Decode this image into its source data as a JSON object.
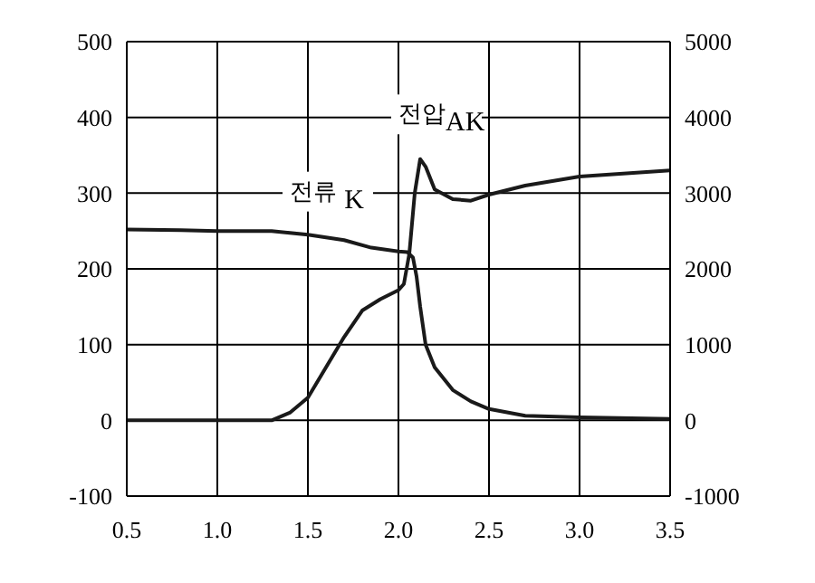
{
  "chart_data": {
    "type": "line",
    "xlim": [
      0.5,
      3.5
    ],
    "xticks": [
      {
        "value": 0.5,
        "label": "0.5"
      },
      {
        "value": 1,
        "label": "1.0"
      },
      {
        "value": 1.5,
        "label": "1.5"
      },
      {
        "value": 2,
        "label": "2.0"
      },
      {
        "value": 2.5,
        "label": "2.5"
      },
      {
        "value": 3,
        "label": "3.0"
      },
      {
        "value": 3.5,
        "label": "3.5"
      }
    ],
    "ylim": [
      -100,
      500
    ],
    "yticks": [
      -100,
      0,
      100,
      200,
      300,
      400,
      500
    ],
    "y2lim": [
      -1000,
      5000
    ],
    "y2ticks": [
      -1000,
      0,
      1000,
      2000,
      3000,
      4000,
      5000
    ],
    "grid": true,
    "marker": "none",
    "line_style": "solid",
    "series": [
      {
        "color": "#1a1a1a",
        "x": [
          0.5,
          0.8,
          1.0,
          1.3,
          1.5,
          1.7,
          1.85,
          2.0,
          2.05,
          2.08,
          2.1,
          2.12,
          2.15,
          2.2,
          2.3,
          2.4,
          2.5,
          2.7,
          3.0,
          3.5
        ],
        "values": [
          252,
          251,
          250,
          250,
          245,
          238,
          228,
          223,
          222,
          215,
          190,
          150,
          100,
          70,
          40,
          25,
          15,
          6,
          4,
          2
        ]
      },
      {
        "color": "#1a1a1a",
        "axis": "y2",
        "x": [
          0.5,
          1.0,
          1.3,
          1.4,
          1.5,
          1.6,
          1.7,
          1.8,
          1.9,
          2.0,
          2.03,
          2.06,
          2.09,
          2.12,
          2.15,
          2.2,
          2.3,
          2.4,
          2.5,
          2.7,
          3.0,
          3.5
        ],
        "values": [
          0,
          0,
          0,
          100,
          300,
          700,
          1100,
          1450,
          1600,
          1720,
          1800,
          2200,
          3000,
          3450,
          3350,
          3050,
          2920,
          2900,
          2980,
          3100,
          3220,
          3300
        ]
      }
    ],
    "annotations": [
      "전류 $_{K}$",
      "전압$_{AK}$"
    ]
  }
}
